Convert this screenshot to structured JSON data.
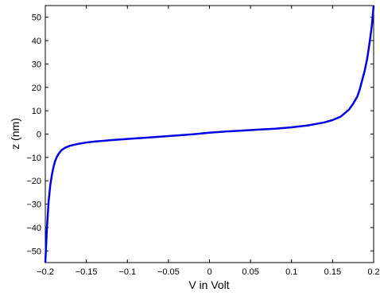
{
  "chart_data": {
    "type": "line",
    "title": "",
    "xlabel": "V in Volt",
    "ylabel": "z (nm)",
    "xlim": [
      -0.2,
      0.2
    ],
    "ylim": [
      -55,
      55
    ],
    "x_ticks": [
      -0.2,
      -0.15,
      -0.1,
      -0.05,
      0,
      0.05,
      0.1,
      0.15,
      0.2
    ],
    "x_tick_labels": [
      "−0.2",
      "−0.15",
      "−0.1",
      "−0.05",
      "0",
      "0.05",
      "0.1",
      "0.15",
      "0.2"
    ],
    "y_ticks": [
      -50,
      -40,
      -30,
      -20,
      -10,
      0,
      10,
      20,
      30,
      40,
      50
    ],
    "y_tick_labels": [
      "−50",
      "−40",
      "−30",
      "−20",
      "−10",
      "0",
      "10",
      "20",
      "30",
      "40",
      "50"
    ],
    "grid": false,
    "series": [
      {
        "color": "#0000e6",
        "x": [
          -0.2,
          -0.198,
          -0.196,
          -0.194,
          -0.192,
          -0.19,
          -0.188,
          -0.186,
          -0.184,
          -0.182,
          -0.18,
          -0.175,
          -0.17,
          -0.16,
          -0.15,
          -0.14,
          -0.12,
          -0.1,
          -0.08,
          -0.06,
          -0.04,
          -0.02,
          0,
          0.02,
          0.04,
          0.06,
          0.08,
          0.1,
          0.12,
          0.14,
          0.15,
          0.16,
          0.17,
          0.175,
          0.18,
          0.183,
          0.186,
          0.189,
          0.192,
          0.194,
          0.196,
          0.198,
          0.2
        ],
        "y": [
          -55,
          -40,
          -29,
          -22,
          -17.5,
          -14,
          -11.5,
          -9.8,
          -8.6,
          -7.6,
          -6.8,
          -5.7,
          -5,
          -4.2,
          -3.6,
          -3.2,
          -2.6,
          -2.1,
          -1.6,
          -1.1,
          -0.6,
          -0.1,
          0.6,
          1.1,
          1.5,
          1.9,
          2.3,
          2.9,
          3.7,
          5,
          6,
          7.5,
          10.5,
          13,
          16,
          19,
          23,
          27,
          32,
          36.5,
          41.5,
          47,
          55
        ]
      }
    ]
  }
}
